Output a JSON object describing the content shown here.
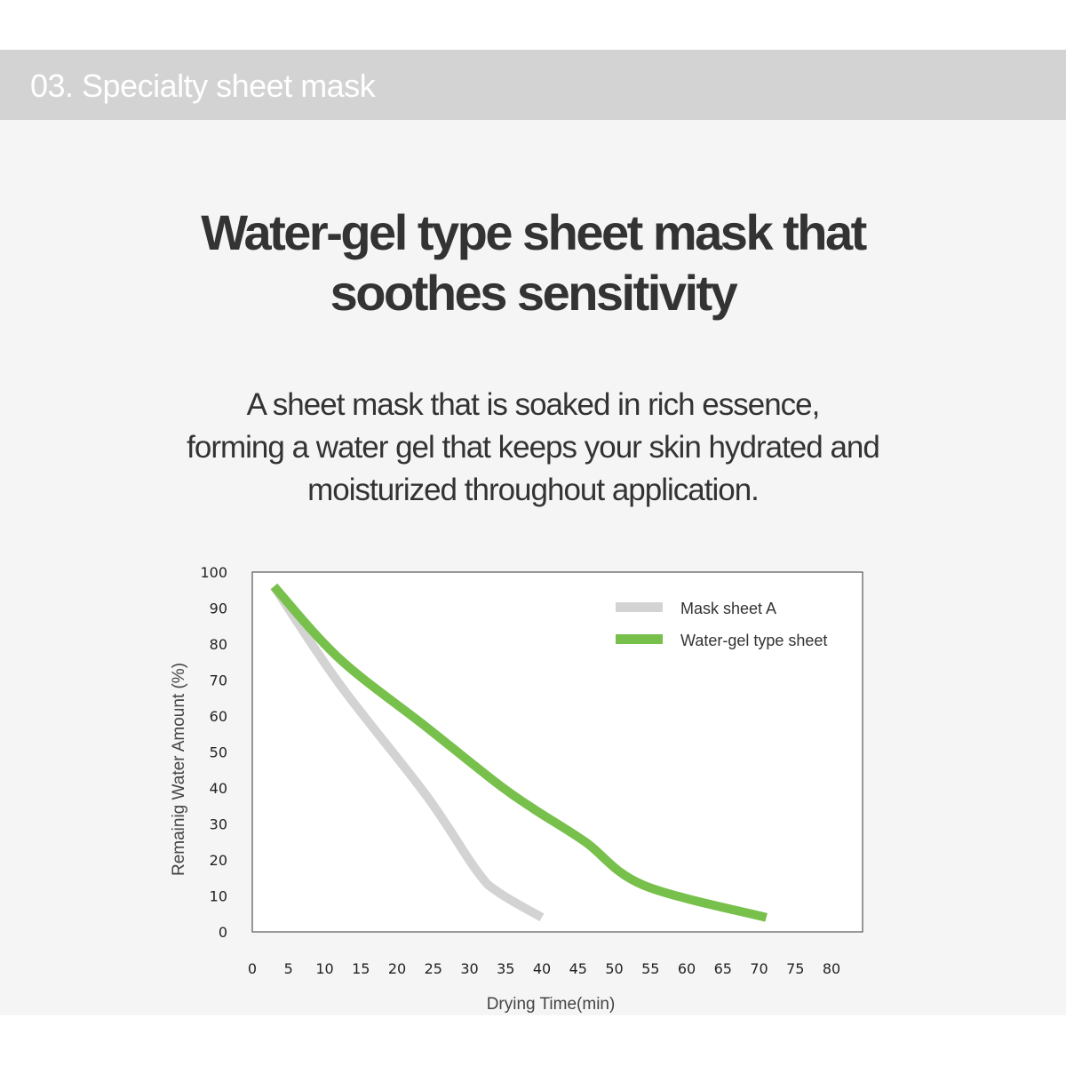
{
  "header": {
    "section": "03. Specialty sheet mask"
  },
  "headline": {
    "line1": "Water-gel type sheet mask that",
    "line2": "soothes sensitivity"
  },
  "description": {
    "line1": "A sheet mask that is soaked in rich essence,",
    "line2": "forming a water gel that keeps your skin hydrated and",
    "line3": "moisturized throughout application."
  },
  "chart_data": {
    "type": "line",
    "xlabel": "Drying Time(min)",
    "ylabel": "Remainig Water Amount (%)",
    "xlim": [
      0,
      84
    ],
    "ylim": [
      0,
      100
    ],
    "xticks": [
      0,
      5,
      10,
      15,
      20,
      25,
      30,
      35,
      40,
      45,
      50,
      55,
      60,
      65,
      70,
      75,
      80
    ],
    "yticks": [
      0,
      10,
      20,
      30,
      40,
      50,
      60,
      70,
      80,
      90,
      100
    ],
    "grid": false,
    "legend_position": "top-right",
    "series": [
      {
        "name": "Mask sheet A",
        "color": "#d3d3d3",
        "points": [
          [
            3,
            96
          ],
          [
            12,
            69
          ],
          [
            24,
            38
          ],
          [
            31,
            17
          ],
          [
            34,
            11
          ],
          [
            40,
            4
          ]
        ]
      },
      {
        "name": "Water-gel type sheet",
        "color": "#77c04b",
        "points": [
          [
            3,
            96
          ],
          [
            12,
            76
          ],
          [
            24,
            57
          ],
          [
            34,
            41
          ],
          [
            39,
            34
          ],
          [
            46,
            25
          ],
          [
            54,
            13
          ],
          [
            71,
            4
          ]
        ]
      }
    ]
  }
}
